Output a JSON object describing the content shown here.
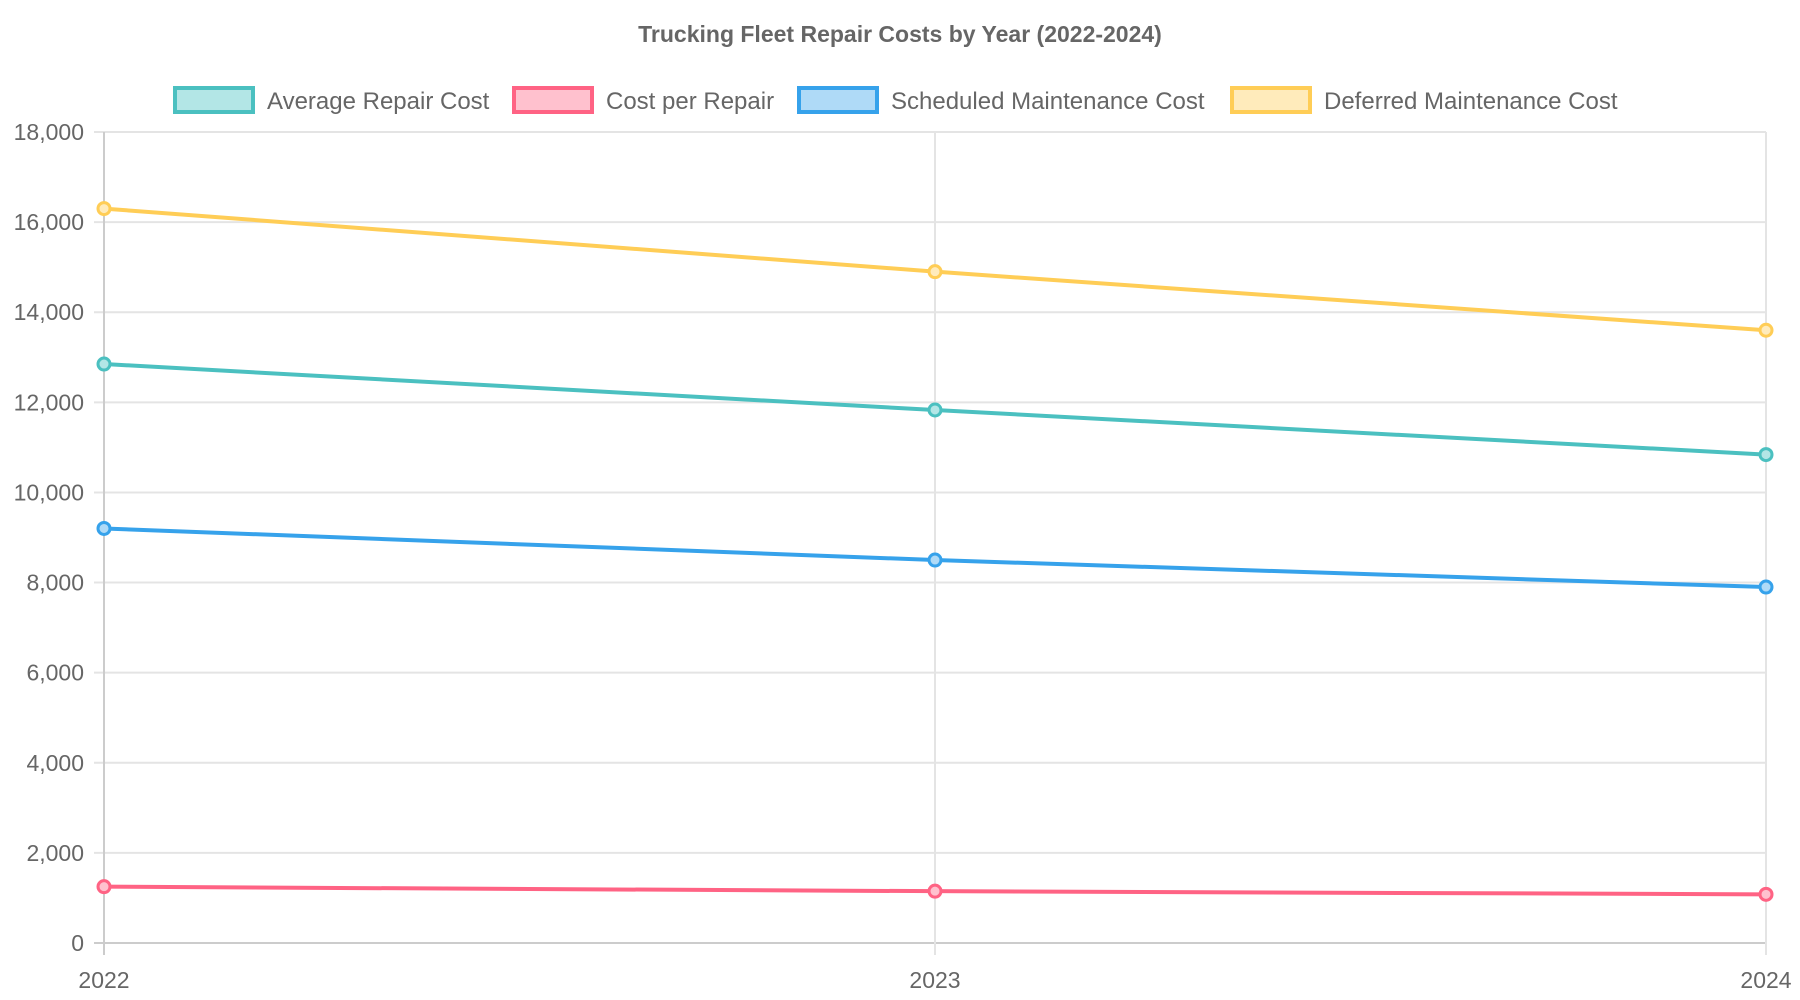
{
  "chart_data": {
    "type": "line",
    "title": "Trucking Fleet Repair Costs by Year (2022-2024)",
    "categories": [
      "2022",
      "2023",
      "2024"
    ],
    "ylim": [
      0,
      18000
    ],
    "yticks": [
      "0",
      "2,000",
      "4,000",
      "6,000",
      "8,000",
      "10,000",
      "12,000",
      "14,000",
      "16,000",
      "18,000"
    ],
    "ytick_values": [
      0,
      2000,
      4000,
      6000,
      8000,
      10000,
      12000,
      14000,
      16000,
      18000
    ],
    "grid": true,
    "legend_position": "top",
    "series": [
      {
        "name": "Average Repair Cost",
        "values": [
          12850,
          11830,
          10840
        ],
        "color": "#4bc0c0",
        "fill": "#b3e6e6"
      },
      {
        "name": "Cost per Repair",
        "values": [
          1250,
          1150,
          1080
        ],
        "color": "#ff6384",
        "fill": "#ffc1ce"
      },
      {
        "name": "Scheduled Maintenance Cost",
        "values": [
          9200,
          8500,
          7900
        ],
        "color": "#36a2eb",
        "fill": "#afdaf7"
      },
      {
        "name": "Deferred Maintenance Cost",
        "values": [
          16300,
          14900,
          13600
        ],
        "color": "#ffcd56",
        "fill": "#ffebbb"
      }
    ]
  }
}
